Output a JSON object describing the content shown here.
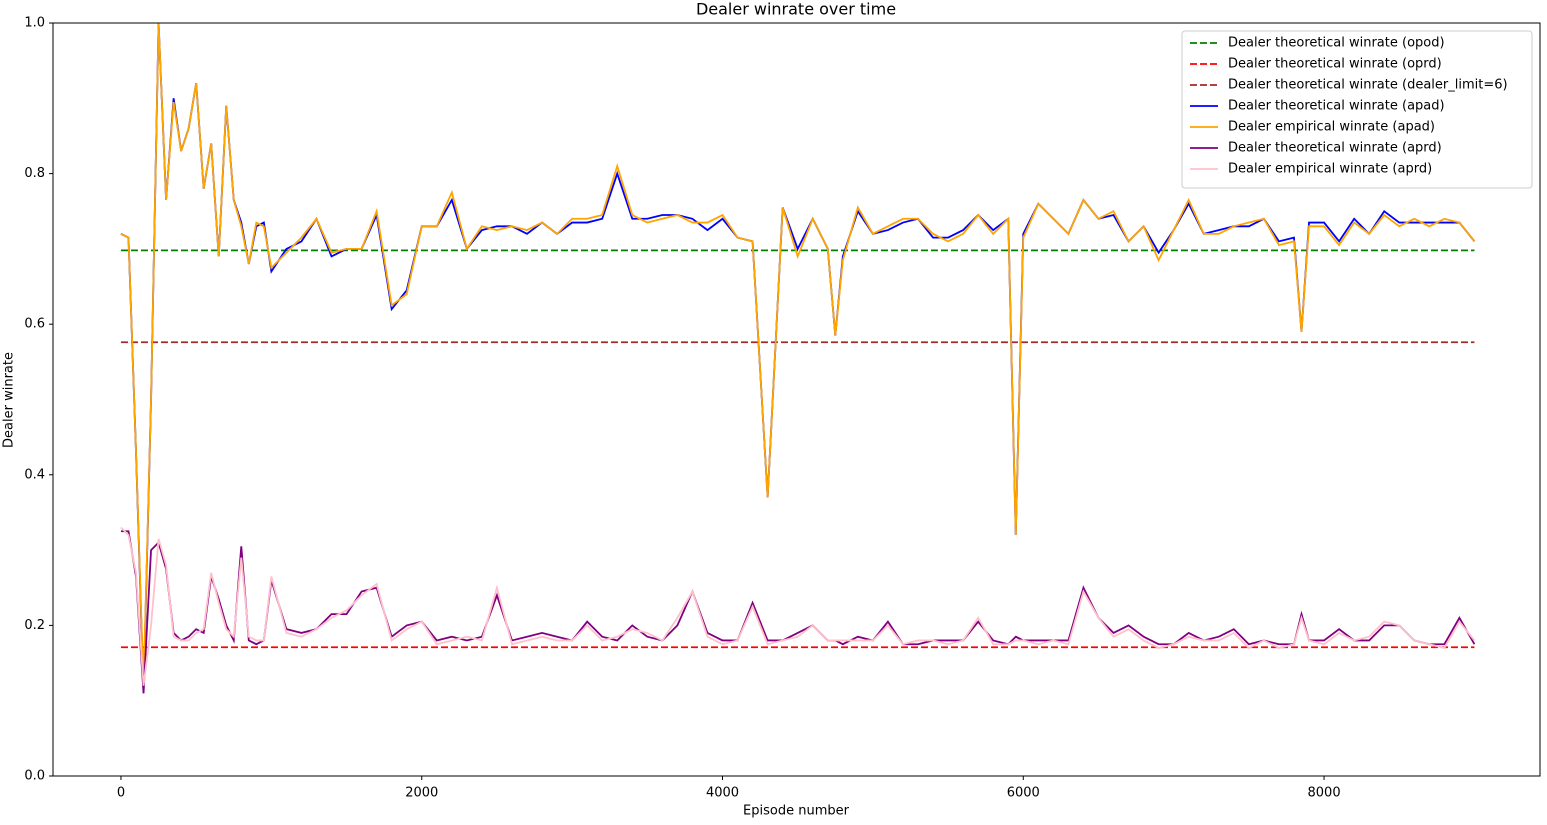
{
  "chart_data": {
    "type": "line",
    "title": "Dealer winrate over time",
    "xlabel": "Episode number",
    "ylabel": "Dealer winrate",
    "xlim": [
      -452,
      9436
    ],
    "ylim": [
      0,
      1
    ],
    "xticks": [
      0,
      2000,
      4000,
      6000,
      8000
    ],
    "yticks": [
      {
        "value": 0,
        "label": "0.0"
      },
      0.2,
      0.4,
      0.6,
      0.8,
      {
        "value": 1,
        "label": "1.0"
      }
    ],
    "legend": "upper right",
    "x": [
      0,
      50,
      100,
      150,
      200,
      250,
      300,
      350,
      400,
      450,
      500,
      550,
      600,
      650,
      700,
      750,
      800,
      850,
      900,
      950,
      1000,
      1100,
      1200,
      1300,
      1400,
      1500,
      1600,
      1700,
      1800,
      1900,
      2000,
      2100,
      2200,
      2300,
      2400,
      2500,
      2600,
      2700,
      2800,
      2900,
      3000,
      3100,
      3200,
      3300,
      3400,
      3500,
      3600,
      3700,
      3800,
      3900,
      4000,
      4100,
      4200,
      4300,
      4400,
      4500,
      4600,
      4700,
      4750,
      4800,
      4900,
      5000,
      5100,
      5200,
      5300,
      5400,
      5500,
      5600,
      5700,
      5800,
      5900,
      5950,
      6000,
      6100,
      6200,
      6300,
      6400,
      6500,
      6600,
      6700,
      6800,
      6900,
      7000,
      7100,
      7200,
      7300,
      7400,
      7500,
      7600,
      7700,
      7800,
      7850,
      7900,
      8000,
      8100,
      8200,
      8300,
      8400,
      8500,
      8600,
      8700,
      8800,
      8900,
      9000
    ],
    "series": [
      {
        "name": "Dealer theoretical winrate (opod)",
        "color": "#008000",
        "linestyle": "dashed",
        "x": [
          0,
          9000
        ],
        "values": [
          0.698,
          0.698
        ]
      },
      {
        "name": "Dealer theoretical winrate (oprd)",
        "color": "#ff0000",
        "linestyle": "dashed",
        "x": [
          0,
          9000
        ],
        "values": [
          0.171,
          0.171
        ]
      },
      {
        "name": "Dealer theoretical winrate (dealer_limit=6)",
        "color": "#a52a2a",
        "linestyle": "dashed",
        "x": [
          0,
          9000
        ],
        "values": [
          0.576,
          0.576
        ]
      },
      {
        "name": "Dealer theoretical winrate (apad)",
        "color": "#0000ff",
        "linestyle": "solid",
        "values": [
          0.72,
          0.715,
          0.43,
          0.11,
          0.5,
          1.0,
          0.765,
          0.9,
          0.83,
          0.86,
          0.92,
          0.78,
          0.84,
          0.69,
          0.89,
          0.765,
          0.735,
          0.68,
          0.73,
          0.735,
          0.67,
          0.7,
          0.71,
          0.74,
          0.69,
          0.7,
          0.7,
          0.745,
          0.62,
          0.645,
          0.73,
          0.73,
          0.765,
          0.7,
          0.725,
          0.73,
          0.73,
          0.72,
          0.735,
          0.72,
          0.735,
          0.735,
          0.74,
          0.8,
          0.74,
          0.74,
          0.745,
          0.745,
          0.74,
          0.725,
          0.74,
          0.715,
          0.71,
          0.37,
          0.755,
          0.7,
          0.74,
          0.7,
          0.585,
          0.69,
          0.75,
          0.72,
          0.725,
          0.735,
          0.74,
          0.715,
          0.715,
          0.725,
          0.745,
          0.725,
          0.74,
          0.32,
          0.72,
          0.76,
          0.74,
          0.72,
          0.765,
          0.74,
          0.745,
          0.71,
          0.73,
          0.695,
          0.725,
          0.76,
          0.72,
          0.725,
          0.73,
          0.73,
          0.74,
          0.71,
          0.715,
          0.59,
          0.735,
          0.735,
          0.71,
          0.74,
          0.72,
          0.75,
          0.735,
          0.735,
          0.735,
          0.735,
          0.735,
          0.71
        ]
      },
      {
        "name": "Dealer empirical winrate (apad)",
        "color": "#ffa500",
        "linestyle": "solid",
        "values": [
          0.72,
          0.715,
          0.43,
          0.12,
          0.5,
          1.0,
          0.765,
          0.895,
          0.83,
          0.86,
          0.92,
          0.78,
          0.84,
          0.69,
          0.89,
          0.765,
          0.73,
          0.68,
          0.735,
          0.73,
          0.675,
          0.695,
          0.715,
          0.74,
          0.695,
          0.7,
          0.7,
          0.75,
          0.625,
          0.64,
          0.73,
          0.73,
          0.775,
          0.7,
          0.73,
          0.725,
          0.73,
          0.725,
          0.735,
          0.72,
          0.74,
          0.74,
          0.745,
          0.81,
          0.745,
          0.735,
          0.74,
          0.745,
          0.735,
          0.735,
          0.745,
          0.715,
          0.71,
          0.37,
          0.755,
          0.69,
          0.74,
          0.7,
          0.585,
          0.685,
          0.755,
          0.72,
          0.73,
          0.74,
          0.74,
          0.72,
          0.71,
          0.72,
          0.745,
          0.72,
          0.74,
          0.32,
          0.715,
          0.76,
          0.74,
          0.72,
          0.765,
          0.74,
          0.75,
          0.71,
          0.73,
          0.685,
          0.725,
          0.765,
          0.72,
          0.72,
          0.73,
          0.735,
          0.74,
          0.705,
          0.71,
          0.59,
          0.73,
          0.73,
          0.705,
          0.735,
          0.72,
          0.745,
          0.73,
          0.74,
          0.73,
          0.74,
          0.735,
          0.71
        ]
      },
      {
        "name": "Dealer theoretical winrate (aprd)",
        "color": "#800080",
        "linestyle": "solid",
        "values": [
          0.325,
          0.325,
          0.265,
          0.11,
          0.3,
          0.31,
          0.275,
          0.19,
          0.18,
          0.185,
          0.195,
          0.19,
          0.265,
          0.235,
          0.2,
          0.18,
          0.305,
          0.18,
          0.175,
          0.18,
          0.26,
          0.195,
          0.19,
          0.195,
          0.215,
          0.215,
          0.245,
          0.25,
          0.185,
          0.2,
          0.205,
          0.18,
          0.185,
          0.18,
          0.185,
          0.24,
          0.18,
          0.185,
          0.19,
          0.185,
          0.18,
          0.205,
          0.185,
          0.18,
          0.2,
          0.185,
          0.18,
          0.2,
          0.245,
          0.19,
          0.18,
          0.18,
          0.23,
          0.18,
          0.18,
          0.19,
          0.2,
          0.18,
          0.18,
          0.175,
          0.185,
          0.18,
          0.205,
          0.175,
          0.175,
          0.18,
          0.18,
          0.18,
          0.205,
          0.18,
          0.175,
          0.185,
          0.18,
          0.18,
          0.18,
          0.18,
          0.25,
          0.21,
          0.19,
          0.2,
          0.185,
          0.175,
          0.175,
          0.19,
          0.18,
          0.185,
          0.195,
          0.175,
          0.18,
          0.175,
          0.175,
          0.215,
          0.18,
          0.18,
          0.195,
          0.18,
          0.18,
          0.2,
          0.2,
          0.18,
          0.175,
          0.175,
          0.21,
          0.175
        ]
      },
      {
        "name": "Dealer empirical winrate (aprd)",
        "color": "#ffc0cb",
        "linestyle": "solid",
        "values": [
          0.33,
          0.32,
          0.27,
          0.12,
          0.2,
          0.315,
          0.28,
          0.185,
          0.18,
          0.18,
          0.19,
          0.195,
          0.27,
          0.23,
          0.195,
          0.185,
          0.29,
          0.185,
          0.18,
          0.18,
          0.265,
          0.19,
          0.185,
          0.195,
          0.21,
          0.22,
          0.24,
          0.255,
          0.18,
          0.195,
          0.205,
          0.175,
          0.18,
          0.185,
          0.18,
          0.25,
          0.175,
          0.18,
          0.185,
          0.18,
          0.18,
          0.2,
          0.18,
          0.185,
          0.195,
          0.19,
          0.18,
          0.21,
          0.245,
          0.185,
          0.175,
          0.18,
          0.225,
          0.175,
          0.18,
          0.185,
          0.2,
          0.18,
          0.18,
          0.18,
          0.18,
          0.18,
          0.2,
          0.175,
          0.18,
          0.18,
          0.175,
          0.18,
          0.21,
          0.175,
          0.175,
          0.18,
          0.18,
          0.175,
          0.18,
          0.175,
          0.245,
          0.21,
          0.185,
          0.195,
          0.18,
          0.17,
          0.175,
          0.185,
          0.18,
          0.18,
          0.19,
          0.17,
          0.18,
          0.17,
          0.175,
          0.21,
          0.18,
          0.175,
          0.19,
          0.18,
          0.185,
          0.205,
          0.2,
          0.18,
          0.175,
          0.17,
          0.205,
          0.18
        ]
      }
    ]
  }
}
